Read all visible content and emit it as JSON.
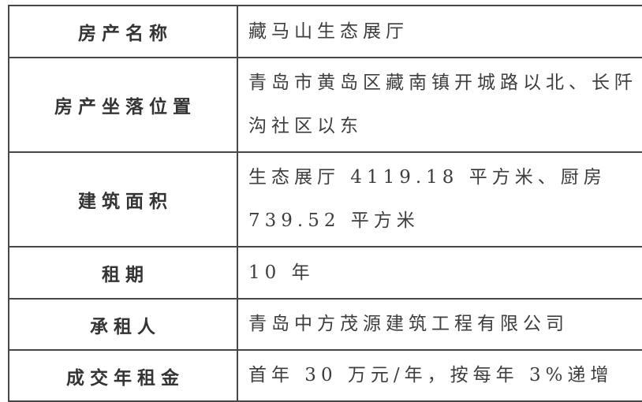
{
  "colors": {
    "border": "#474747",
    "label_text": "#343434",
    "value_text": "#3d3d3d",
    "background": "#ffffff"
  },
  "table": {
    "rows": [
      {
        "label": "房产名称",
        "value": "藏马山生态展厅"
      },
      {
        "label": "房产坐落位置",
        "value": "青岛市黄岛区藏南镇开城路以北、长阡沟社区以东"
      },
      {
        "label": "建筑面积",
        "value": "生态展厅 4119.18 平方米、厨房 739.52 平方米"
      },
      {
        "label": "租期",
        "value": "10 年"
      },
      {
        "label": "承租人",
        "value": "青岛中方茂源建筑工程有限公司"
      },
      {
        "label": "成交年租金",
        "value": "首年 30 万元/年，按每年 3%递增"
      }
    ]
  }
}
